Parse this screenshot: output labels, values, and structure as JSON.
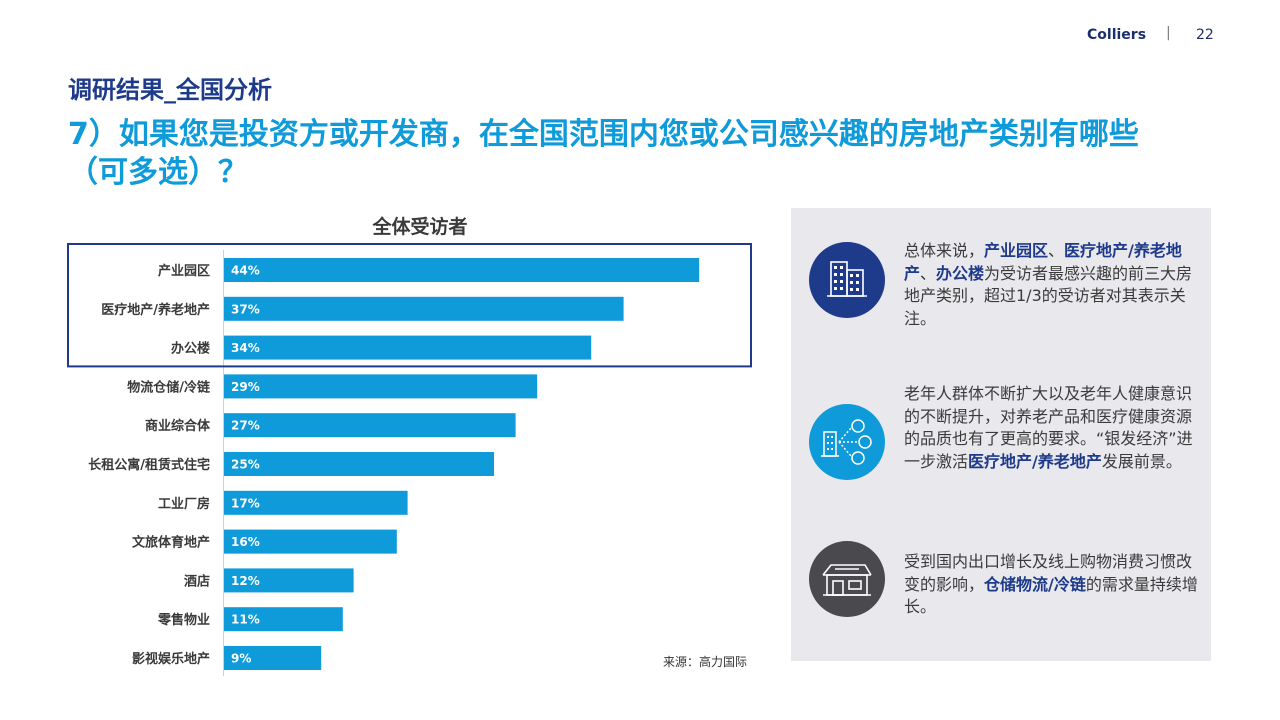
{
  "header": {
    "brand": "Colliers",
    "separator": "|",
    "page_number": "22"
  },
  "section_title": "调研结果_全国分析",
  "question": "7）如果您是投资方或开发商，在全国范围内您或公司感兴趣的房地产类别有哪些（可多选）？",
  "source": "来源：高力国际",
  "colors": {
    "bar": "#0f9ad9",
    "navy": "#1e3a8a",
    "highlight_box": "#1e3a8a",
    "panel_bg": "#e8e8ed",
    "icon_dark": "#4a4a4e"
  },
  "chart_data": {
    "type": "bar",
    "orientation": "horizontal",
    "title": "全体受访者",
    "categories": [
      "产业园区",
      "医疗地产/养老地产",
      "办公楼",
      "物流仓储/冷链",
      "商业综合体",
      "长租公寓/租赁式住宅",
      "工业厂房",
      "文旅体育地产",
      "酒店",
      "零售物业",
      "影视娱乐地产"
    ],
    "values": [
      44,
      37,
      34,
      29,
      27,
      25,
      17,
      16,
      12,
      11,
      9
    ],
    "value_labels": [
      "44%",
      "37%",
      "34%",
      "29%",
      "27%",
      "25%",
      "17%",
      "16%",
      "12%",
      "11%",
      "9%"
    ],
    "highlighted_categories": [
      "产业园区",
      "医疗地产/养老地产",
      "办公楼"
    ],
    "xlim": [
      0,
      50
    ],
    "grid": false,
    "legend": "none"
  },
  "insights": [
    {
      "icon": "office-buildings-icon",
      "icon_color": "#1e3a8a",
      "segments": [
        {
          "text": "总体来说，",
          "hl": false
        },
        {
          "text": "产业园区",
          "hl": true
        },
        {
          "text": "、",
          "hl": false
        },
        {
          "text": "医疗地产/养老地产",
          "hl": true
        },
        {
          "text": "、",
          "hl": false
        },
        {
          "text": "办公楼",
          "hl": true
        },
        {
          "text": "为受访者最感兴趣的前三大房地产类别，超过1/3的受访者对其表示关注。",
          "hl": false
        }
      ]
    },
    {
      "icon": "building-people-network-icon",
      "icon_color": "#0f9ad9",
      "segments": [
        {
          "text": "老年人群体不断扩大以及老年人健康意识的不断提升，对养老产品和医疗健康资源的品质也有了更高的要求。“银发经济”进一步激活",
          "hl": false
        },
        {
          "text": "医疗地产/养老地产",
          "hl": true
        },
        {
          "text": "发展前景。",
          "hl": false
        }
      ]
    },
    {
      "icon": "warehouse-icon",
      "icon_color": "#4a4a4e",
      "segments": [
        {
          "text": "受到国内出口增长及线上购物消费习惯改变的影响，",
          "hl": false
        },
        {
          "text": "仓储物流/冷链",
          "hl": true
        },
        {
          "text": "的需求量持续增长。",
          "hl": false
        }
      ]
    }
  ]
}
